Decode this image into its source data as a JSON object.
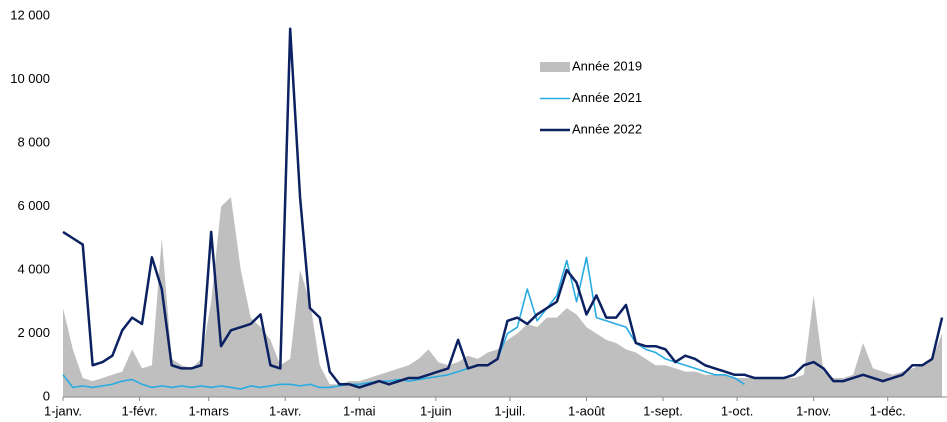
{
  "chart_data": {
    "type": "line",
    "x": [
      0,
      4,
      8,
      12,
      16,
      20,
      24,
      28,
      32,
      36,
      40,
      44,
      48,
      52,
      56,
      60,
      64,
      68,
      72,
      76,
      80,
      84,
      88,
      92,
      96,
      100,
      104,
      108,
      112,
      116,
      120,
      124,
      128,
      132,
      136,
      140,
      144,
      148,
      152,
      156,
      160,
      164,
      168,
      172,
      176,
      180,
      184,
      188,
      192,
      196,
      200,
      204,
      208,
      212,
      216,
      220,
      224,
      228,
      232,
      236,
      240,
      244,
      248,
      252,
      256,
      260,
      264,
      268,
      272,
      276,
      280,
      284,
      288,
      292,
      296,
      300,
      304,
      308,
      312,
      316,
      320,
      324,
      328,
      332,
      336,
      340,
      344,
      348,
      352,
      356
    ],
    "series": [
      {
        "name": "Année 2019",
        "type": "area",
        "color": "#bfbfbf",
        "values": [
          2800,
          1500,
          600,
          500,
          600,
          700,
          800,
          1500,
          900,
          1000,
          5000,
          1200,
          1000,
          900,
          1200,
          3000,
          6000,
          6300,
          4000,
          2500,
          2200,
          1800,
          1000,
          1200,
          4000,
          3000,
          1000,
          400,
          400,
          500,
          500,
          600,
          700,
          800,
          900,
          1000,
          1200,
          1500,
          1100,
          1000,
          1100,
          1300,
          1200,
          1400,
          1500,
          1800,
          2000,
          2300,
          2200,
          2500,
          2500,
          2800,
          2600,
          2200,
          2000,
          1800,
          1700,
          1500,
          1400,
          1200,
          1000,
          1000,
          900,
          800,
          800,
          700,
          700,
          700,
          600,
          600,
          600,
          600,
          600,
          600,
          600,
          700,
          3200,
          800,
          600,
          600,
          700,
          1700,
          900,
          800,
          700,
          800,
          900,
          1000,
          1200,
          2000
        ]
      },
      {
        "name": "Année 2021",
        "type": "line",
        "color": "#29abe2",
        "values": [
          700,
          300,
          350,
          300,
          350,
          400,
          500,
          550,
          400,
          300,
          350,
          300,
          350,
          300,
          350,
          300,
          350,
          300,
          250,
          350,
          300,
          350,
          400,
          400,
          350,
          400,
          300,
          300,
          350,
          400,
          400,
          450,
          500,
          500,
          550,
          500,
          550,
          600,
          650,
          700,
          800,
          900,
          1000,
          1000,
          1200,
          2000,
          2200,
          3400,
          2400,
          2800,
          3200,
          4300,
          3000,
          4400,
          2500,
          2400,
          2300,
          2200,
          1700,
          1500,
          1400,
          1200,
          1100,
          1000,
          900,
          800,
          700,
          700,
          600,
          400,
          null,
          null,
          null,
          null,
          null,
          null,
          null,
          null,
          null,
          null,
          null,
          null,
          null,
          null,
          null,
          null,
          null,
          null,
          null,
          null
        ]
      },
      {
        "name": "Année 2022",
        "type": "line",
        "color": "#0b2161",
        "values": [
          5200,
          5000,
          4800,
          1000,
          1100,
          1300,
          2100,
          2500,
          2300,
          4400,
          3400,
          1000,
          900,
          900,
          1000,
          5200,
          1600,
          2100,
          2200,
          2300,
          2600,
          1000,
          900,
          11600,
          6300,
          2800,
          2500,
          800,
          400,
          400,
          300,
          400,
          500,
          400,
          500,
          600,
          600,
          700,
          800,
          900,
          1800,
          900,
          1000,
          1000,
          1200,
          2400,
          2500,
          2300,
          2600,
          2800,
          3000,
          4000,
          3600,
          2600,
          3200,
          2500,
          2500,
          2900,
          1700,
          1600,
          1600,
          1500,
          1100,
          1300,
          1200,
          1000,
          900,
          800,
          700,
          700,
          600,
          600,
          600,
          600,
          700,
          1000,
          1100,
          900,
          500,
          500,
          600,
          700,
          600,
          500,
          600,
          700,
          1000,
          1000,
          1200,
          2500
        ]
      }
    ],
    "xlim": [
      0,
      358
    ],
    "xticks": [
      {
        "value": 0,
        "label": "1-janv."
      },
      {
        "value": 31,
        "label": "1-févr."
      },
      {
        "value": 59,
        "label": "1-mars"
      },
      {
        "value": 90,
        "label": "1-avr."
      },
      {
        "value": 120,
        "label": "1-mai"
      },
      {
        "value": 151,
        "label": "1-juin"
      },
      {
        "value": 181,
        "label": "1-juil."
      },
      {
        "value": 212,
        "label": "1-août"
      },
      {
        "value": 243,
        "label": "1-sept."
      },
      {
        "value": 273,
        "label": "1-oct."
      },
      {
        "value": 304,
        "label": "1-nov."
      },
      {
        "value": 334,
        "label": "1-déc."
      }
    ],
    "ylim": [
      0,
      12000
    ],
    "yticks": [
      0,
      {
        "value": 2000,
        "label": "2 000"
      },
      {
        "value": 4000,
        "label": "4 000"
      },
      {
        "value": 6000,
        "label": "6 000"
      },
      {
        "value": 8000,
        "label": "8 000"
      },
      {
        "value": 10000,
        "label": "10 000"
      },
      {
        "value": 12000,
        "label": "12 000"
      }
    ]
  }
}
